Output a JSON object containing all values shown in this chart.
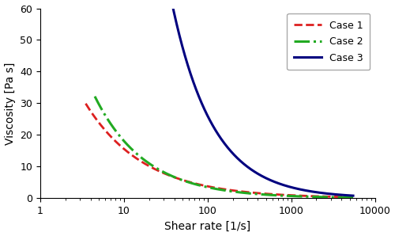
{
  "title": "",
  "xlabel": "Shear rate [1/s]",
  "ylabel_text": "Viscosity [Pa s]",
  "xlim": [
    1,
    10000
  ],
  "ylim": [
    0,
    60
  ],
  "yticks": [
    0,
    10,
    20,
    30,
    40,
    50,
    60
  ],
  "cases": [
    {
      "name": "Case 1",
      "color": "#dd2020",
      "linestyle": "--",
      "linewidth": 2.0,
      "K": 65.0,
      "n": 0.38,
      "x_start": 3.5,
      "x_end": 5500
    },
    {
      "name": "Case 2",
      "color": "#22aa22",
      "linestyle": "-.",
      "linewidth": 2.2,
      "K": 95.0,
      "n": 0.28,
      "x_start": 4.5,
      "x_end": 5500
    },
    {
      "name": "Case 3",
      "color": "#00007f",
      "linestyle": "-",
      "linewidth": 2.2,
      "K": 1500.0,
      "n": 0.12,
      "x_start": 9.5,
      "x_end": 5500
    }
  ],
  "legend_loc": "upper right",
  "background_color": "#ffffff",
  "grid": false,
  "figsize": [
    5.0,
    2.98
  ],
  "dpi": 100
}
